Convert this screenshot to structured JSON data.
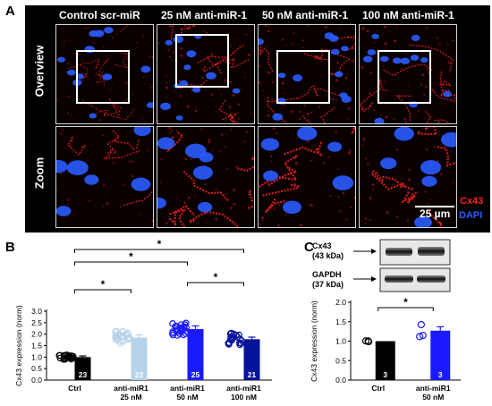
{
  "panels": {
    "a": {
      "letter": "A"
    },
    "b": {
      "letter": "B"
    },
    "c": {
      "letter": "C"
    }
  },
  "microscopy": {
    "columns": [
      "Control scr-miR",
      "25 nM anti-miR-1",
      "50 nM anti-miR-1",
      "100 nM anti-miR-1"
    ],
    "rows": [
      "Overview",
      "Zoom"
    ],
    "legend_cx43": "Cx43",
    "legend_dapi": "DAPI",
    "scale_bar": "25 µm",
    "colors": {
      "cx43": "#ff2020",
      "dapi": "#2a5bff"
    }
  },
  "chart_data": [
    {
      "type": "bar",
      "panel": "B",
      "title": "",
      "xlabel": "",
      "ylabel": "Cx43 expression (norm)",
      "ylim": [
        0,
        3.0
      ],
      "yticks": [
        "0.0",
        "0.5",
        "1.0",
        "1.5",
        "2.0",
        "2.5",
        "3.0"
      ],
      "categories": [
        "Ctrl",
        "anti-miR1 25 nM",
        "anti-miR1 50 nM",
        "anti-miR1 100 nM"
      ],
      "category_lines": [
        [
          "Ctrl"
        ],
        [
          "anti-miR1",
          "25 nM"
        ],
        [
          "anti-miR1",
          "50 nM"
        ],
        [
          "anti-miR1",
          "100 nM"
        ]
      ],
      "values": [
        1.0,
        1.85,
        2.22,
        1.78
      ],
      "errors": [
        0.05,
        0.12,
        0.14,
        0.09
      ],
      "n": [
        "23",
        "22",
        "25",
        "21"
      ],
      "bar_colors": [
        "#000000",
        "#b7d3ea",
        "#1a1aff",
        "#07139a"
      ],
      "significance": [
        {
          "from": 0,
          "to": 1,
          "label": "*"
        },
        {
          "from": 0,
          "to": 2,
          "label": "*"
        },
        {
          "from": 0,
          "to": 3,
          "label": "*"
        },
        {
          "from": 2,
          "to": 3,
          "label": "*"
        }
      ]
    },
    {
      "type": "bar",
      "panel": "C",
      "title": "",
      "xlabel": "",
      "ylabel": "Cx43 expression (norm)",
      "ylim": [
        0,
        2.0
      ],
      "yticks": [
        "0.0",
        "0.5",
        "1.0",
        "1.5",
        "2.0"
      ],
      "categories": [
        "Ctrl",
        "anti-miR1 50 nM"
      ],
      "category_lines": [
        [
          "Ctrl"
        ],
        [
          "anti-miR1",
          "50 nM"
        ]
      ],
      "values": [
        1.0,
        1.27
      ],
      "errors": [
        0.0,
        0.1
      ],
      "n": [
        "3",
        "3"
      ],
      "bar_colors": [
        "#000000",
        "#1a1aff"
      ],
      "significance": [
        {
          "from": 0,
          "to": 1,
          "label": "*"
        }
      ],
      "blot_labels": [
        [
          "Cx43",
          "(43 kDa)"
        ],
        [
          "GAPDH",
          "(37 kDa)"
        ]
      ]
    }
  ]
}
